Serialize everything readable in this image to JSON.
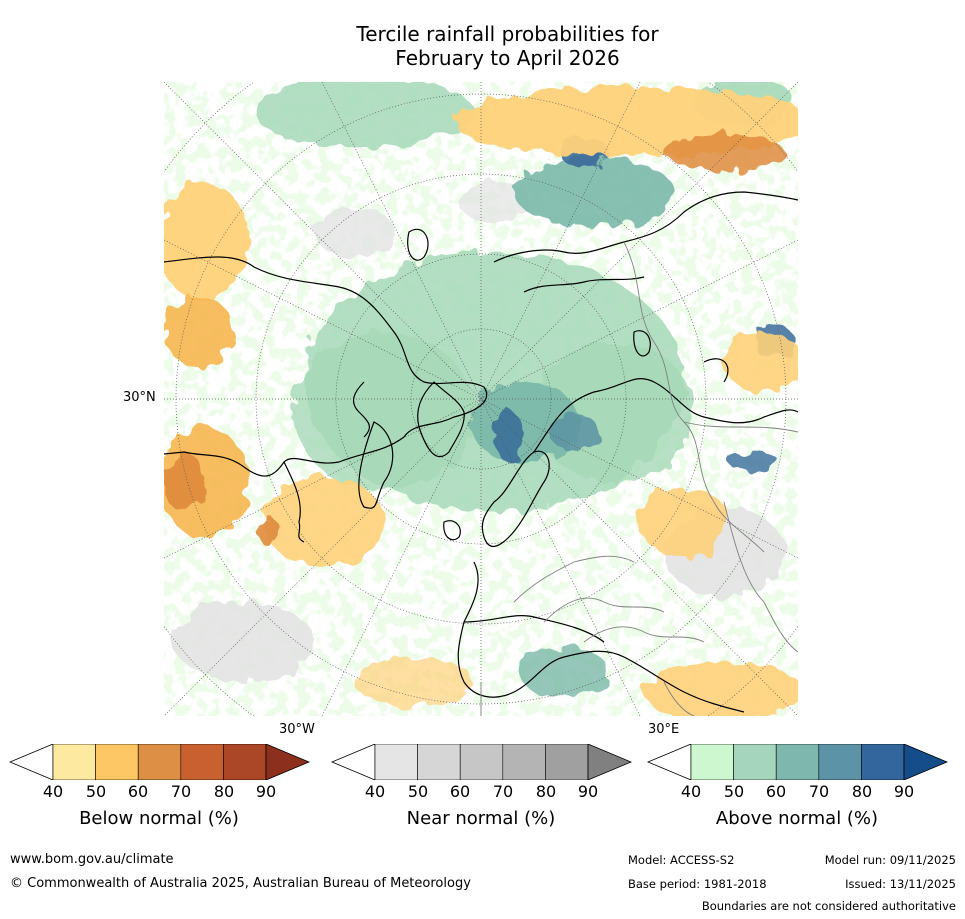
{
  "title": {
    "line1": "Tercile rainfall probabilities for",
    "line2": "February to April 2026"
  },
  "map": {
    "labels": {
      "lat_30n": "30°N",
      "lon_30w": "30°W",
      "lon_30e": "30°E"
    },
    "colors": {
      "ocean_noise": "#d6f7cf",
      "above_50": "#a6d8b8",
      "above_60": "#7ab8a8",
      "above_70": "#5a93a3",
      "above_80": "#3a6b9a",
      "below_50": "#ffd27a",
      "below_60": "#f6b650",
      "below_70": "#df8b3c",
      "near_50": "#e3e3e3",
      "coast": "#000000",
      "border": "#808080"
    }
  },
  "colorbars": [
    {
      "name": "below",
      "label": "Below normal (%)",
      "ticks": [
        "40",
        "50",
        "60",
        "70",
        "80",
        "90"
      ],
      "colors": [
        "#ffffff",
        "#fee9a0",
        "#fdc765",
        "#dd8f45",
        "#c8612f",
        "#ab4627",
        "#8d2f1d"
      ]
    },
    {
      "name": "near",
      "label": "Near normal (%)",
      "ticks": [
        "40",
        "50",
        "60",
        "70",
        "80",
        "90"
      ],
      "colors": [
        "#ffffff",
        "#e5e5e5",
        "#d6d6d6",
        "#c6c6c6",
        "#b4b4b4",
        "#a0a0a0",
        "#808080"
      ]
    },
    {
      "name": "above",
      "label": "Above normal (%)",
      "ticks": [
        "40",
        "50",
        "60",
        "70",
        "80",
        "90"
      ],
      "colors": [
        "#ffffff",
        "#ccf7cf",
        "#a5d6bd",
        "#7db7ae",
        "#5c93a6",
        "#33669c",
        "#154d8a"
      ]
    }
  ],
  "footer": {
    "url": "www.bom.gov.au/climate",
    "copyright": "© Commonwealth of Australia 2025, Australian Bureau of Meteorology",
    "model": "Model: ACCESS-S2",
    "base_period": "Base period: 1981-2018",
    "model_run": "Model run: 09/11/2025",
    "issued": "Issued: 13/11/2025",
    "disclaimer": "Boundaries are not considered authoritative"
  }
}
